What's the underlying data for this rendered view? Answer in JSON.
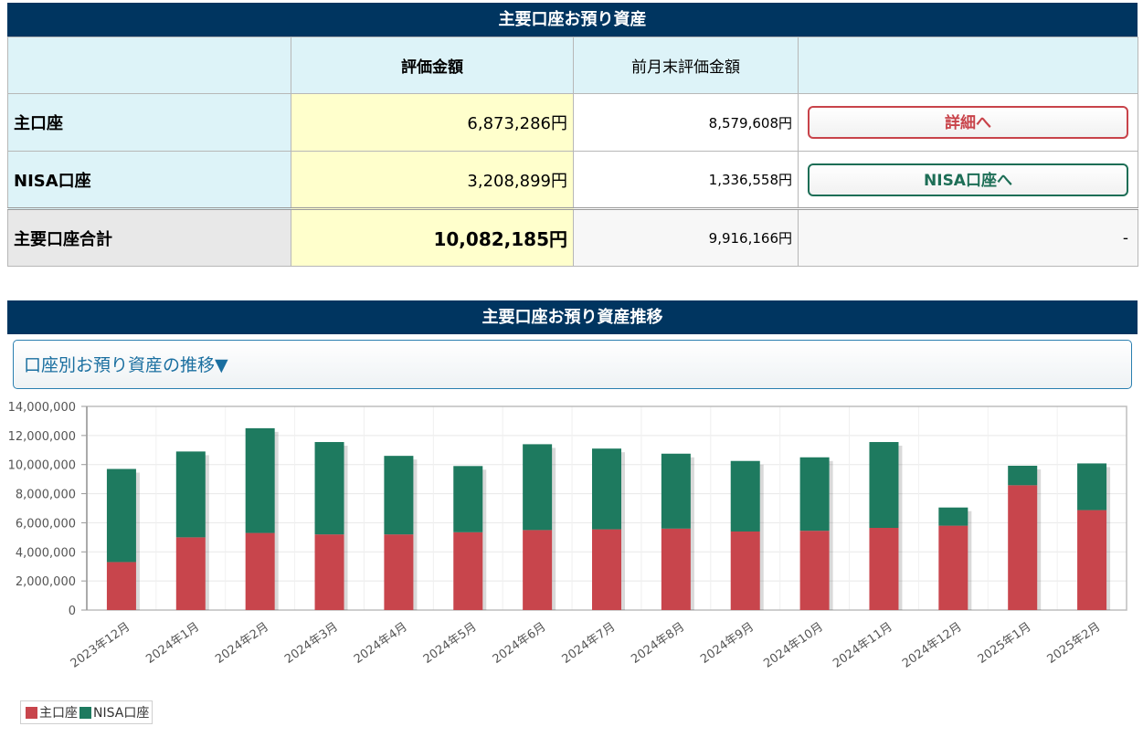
{
  "section1": {
    "title": "主要口座お預り資産"
  },
  "table": {
    "headers": [
      "",
      "評価金額",
      "前月末評価金額",
      ""
    ],
    "rows": [
      {
        "label": "主口座",
        "value": "6,873,286円",
        "prev": "8,579,608円",
        "action": "詳細へ"
      },
      {
        "label": "NISA口座",
        "value": "3,208,899円",
        "prev": "1,336,558円",
        "action": "NISA口座へ"
      }
    ],
    "total": {
      "label": "主要口座合計",
      "value": "10,082,185円",
      "prev": "9,916,166円",
      "action": "-"
    }
  },
  "section2": {
    "title": "主要口座お預り資産推移",
    "toggle": "口座別お預り資産の推移▼"
  },
  "colors": {
    "header_bg": "#003560",
    "main": "#c8454c",
    "nisa": "#1e7a5f"
  },
  "chart_data": {
    "type": "bar",
    "stacked": true,
    "categories": [
      "2023年12月",
      "2024年1月",
      "2024年2月",
      "2024年3月",
      "2024年4月",
      "2024年5月",
      "2024年6月",
      "2024年7月",
      "2024年8月",
      "2024年9月",
      "2024年10月",
      "2024年11月",
      "2024年12月",
      "2025年1月",
      "2025年2月"
    ],
    "series": [
      {
        "name": "主口座",
        "color": "#c8454c",
        "values": [
          3300000,
          5000000,
          5300000,
          5200000,
          5200000,
          5350000,
          5500000,
          5550000,
          5600000,
          5400000,
          5450000,
          5650000,
          5800000,
          8580000,
          6870000
        ]
      },
      {
        "name": "NISA口座",
        "color": "#1e7a5f",
        "values": [
          6400000,
          5900000,
          7200000,
          6350000,
          5400000,
          4550000,
          5900000,
          5550000,
          5150000,
          4850000,
          5050000,
          5900000,
          1250000,
          1340000,
          3210000
        ]
      }
    ],
    "ylim": [
      0,
      14000000
    ],
    "yticks": [
      "0",
      "2,000,000",
      "4,000,000",
      "6,000,000",
      "8,000,000",
      "10,000,000",
      "12,000,000",
      "14,000,000"
    ],
    "grid": true,
    "legend": "bottom-left"
  }
}
